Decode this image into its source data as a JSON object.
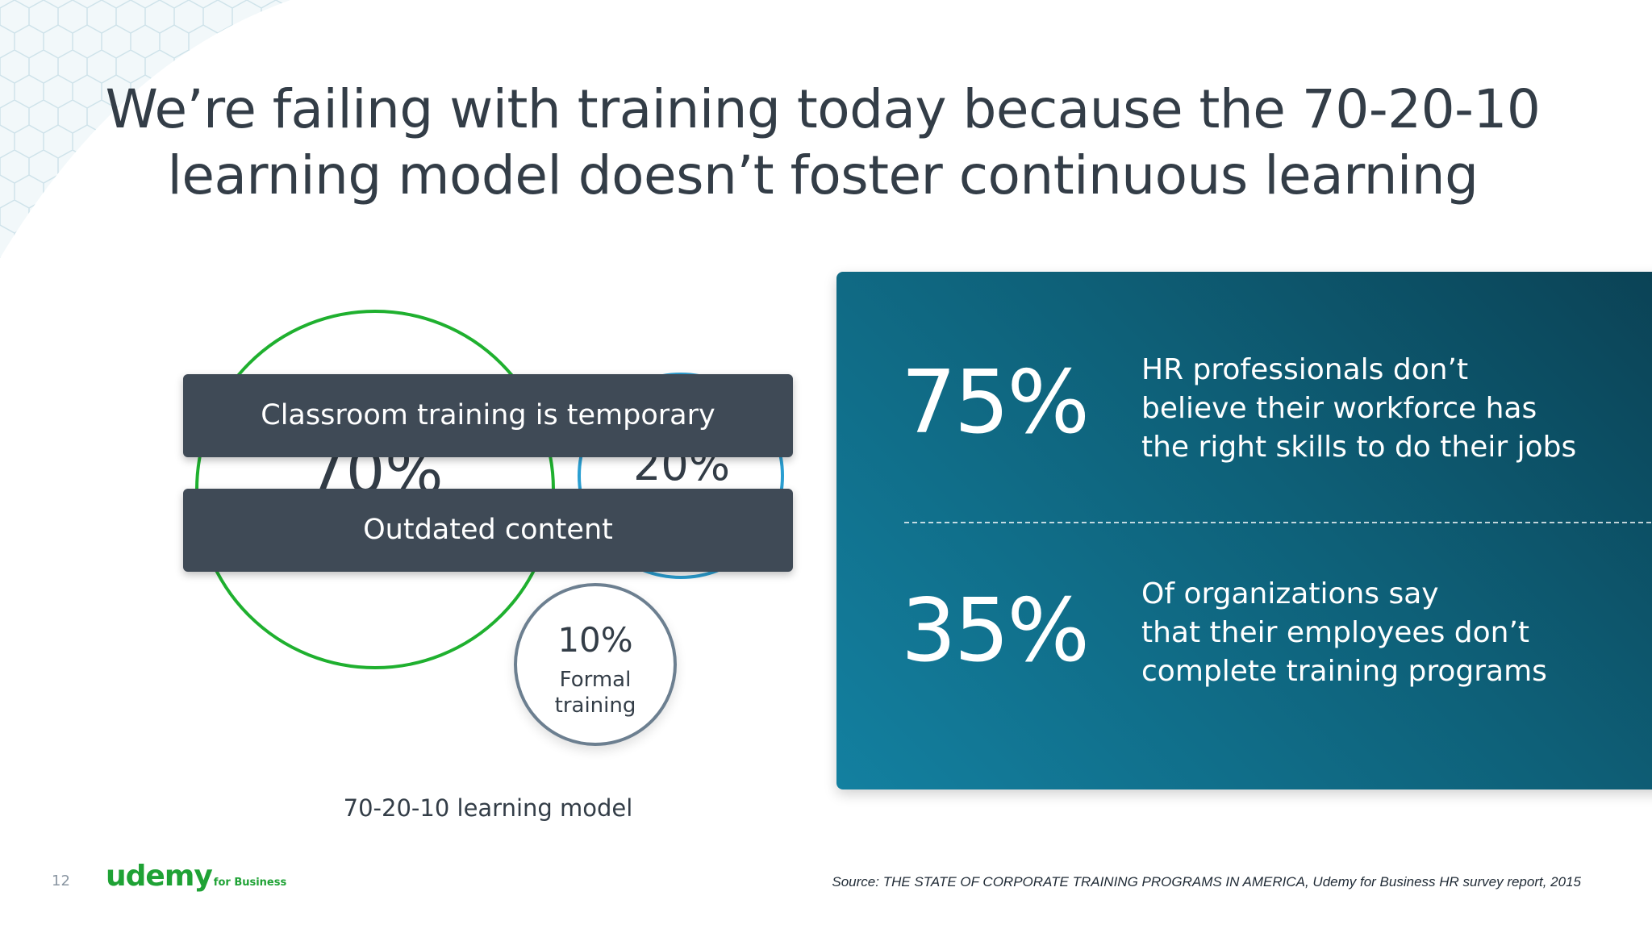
{
  "slide": {
    "title_line1": "We’re failing with training today because the 70-20-10",
    "title_line2": "learning model doesn’t foster continuous learning",
    "page_number": "12"
  },
  "diagram": {
    "pct_70": "70%",
    "pct_20": "20%",
    "pct_10": "10%",
    "label_10_line1": "Formal",
    "label_10_line2": "training",
    "banner_1": "Classroom training is temporary",
    "banner_2": "Outdated content",
    "caption": "70-20-10 learning model",
    "colors": {
      "circle_70": "#1fb02f",
      "circle_20": "#2a9ed1",
      "circle_10": "#6c7f90",
      "banner": "#3f4a56"
    }
  },
  "stats": [
    {
      "value": "75%",
      "line1": "HR professionals don’t",
      "line2": "believe their workforce has",
      "line3": "the right skills to do their jobs"
    },
    {
      "value": "35%",
      "line1": "Of organizations say",
      "line2": "that their employees don’t",
      "line3": "complete training programs"
    }
  ],
  "panel_colors": [
    "#0b4255",
    "#1380a0"
  ],
  "footer": {
    "logo_main": "udemy",
    "logo_sub": "for Business",
    "source": "Source: THE STATE OF CORPORATE TRAINING PROGRAMS IN AMERICA, Udemy for Business HR survey report, 2015"
  }
}
